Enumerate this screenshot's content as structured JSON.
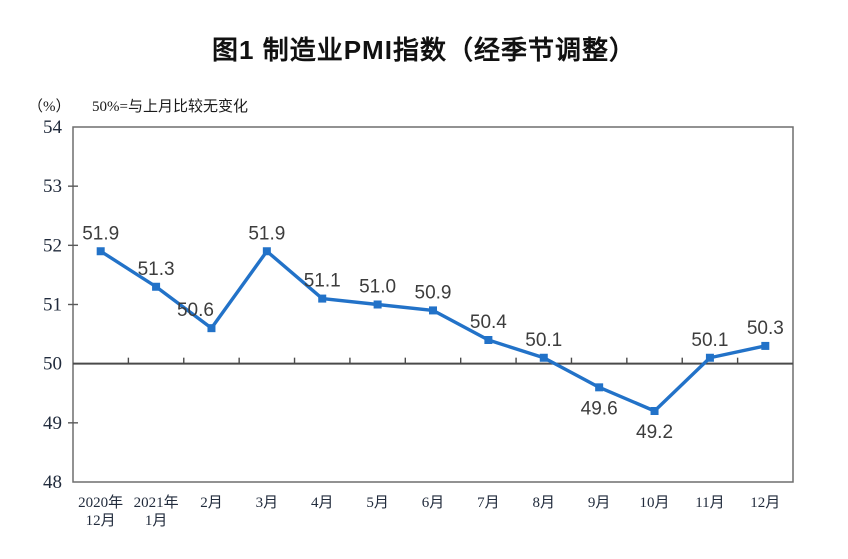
{
  "chart_data": {
    "type": "line",
    "title": "图1 制造业PMI指数（经季节调整）",
    "unit_label": "（%）",
    "note": "50%=与上月比较无变化",
    "categories": [
      "2020年\n12月",
      "2021年\n1月",
      "2月",
      "3月",
      "4月",
      "5月",
      "6月",
      "7月",
      "8月",
      "9月",
      "10月",
      "11月",
      "12月"
    ],
    "values": [
      51.9,
      51.3,
      50.6,
      51.9,
      51.1,
      51.0,
      50.9,
      50.4,
      50.1,
      49.6,
      49.2,
      50.1,
      50.3
    ],
    "label_side": [
      "above",
      "above",
      "above",
      "above",
      "above",
      "above",
      "above",
      "above",
      "above",
      "below",
      "below",
      "above",
      "above"
    ],
    "label_dx": [
      0,
      0,
      -16,
      0,
      0,
      0,
      0,
      0,
      0,
      0,
      0,
      0,
      0
    ],
    "ylim": [
      48,
      54
    ],
    "ytick_step": 1,
    "reference_line": 50,
    "legend": "none",
    "grid": false,
    "series_color": "#2272C8",
    "frame_color": "#6e6e6e",
    "refline_color": "#4a4a4a",
    "tick_color": "#595959",
    "axis_text_color": "#212b3c",
    "datalabel_color": "#3d3d3d"
  }
}
